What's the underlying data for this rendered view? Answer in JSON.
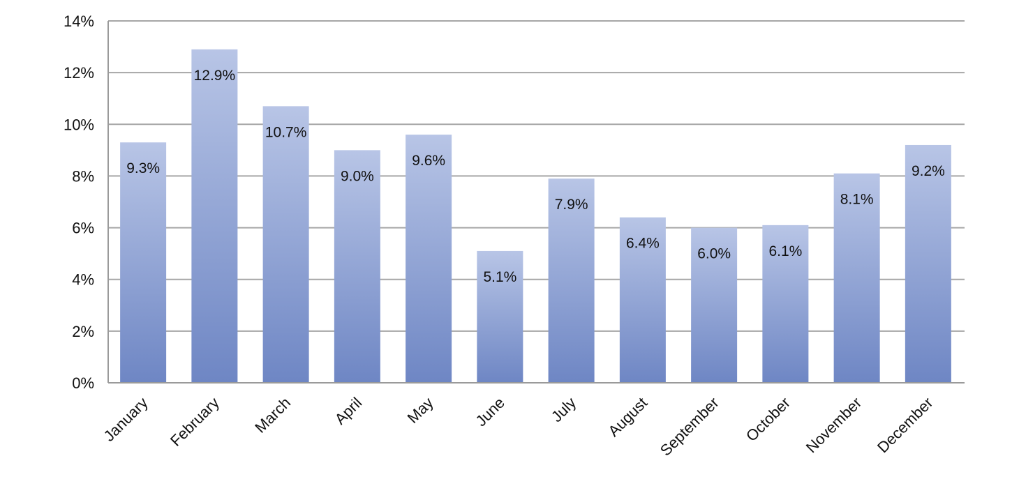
{
  "chart_data": {
    "type": "bar",
    "title": "",
    "xlabel": "",
    "ylabel": "",
    "categories": [
      "January",
      "February",
      "March",
      "April",
      "May",
      "June",
      "July",
      "August",
      "September",
      "October",
      "November",
      "December"
    ],
    "values": [
      9.3,
      12.9,
      10.7,
      9.0,
      9.6,
      5.1,
      7.9,
      6.4,
      6.0,
      6.1,
      8.1,
      9.2
    ],
    "data_labels": [
      "9.3%",
      "12.9%",
      "10.7%",
      "9.0%",
      "9.6%",
      "5.1%",
      "7.9%",
      "6.4%",
      "6.0%",
      "6.1%",
      "8.1%",
      "9.2%"
    ],
    "ylim": [
      0,
      14
    ],
    "y_ticks": [
      0,
      2,
      4,
      6,
      8,
      10,
      12,
      14
    ],
    "y_tick_labels": [
      "0%",
      "2%",
      "4%",
      "6%",
      "8%",
      "10%",
      "12%",
      "14%"
    ],
    "grid": "horizontal",
    "legend": "none",
    "colors": {
      "bar_top": "#b8c5e6",
      "bar_bottom": "#6e86c4",
      "grid": "#a6a6a6"
    }
  }
}
